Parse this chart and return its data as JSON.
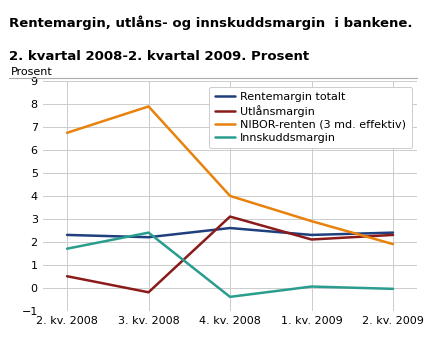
{
  "title_line1": "Rentemargin, utlåns- og innskuddsmargin  i bankene.",
  "title_line2": "2. kvartal 2008-2. kvartal 2009. Prosent",
  "ylabel": "Prosent",
  "x_labels": [
    "2. kv. 2008",
    "3. kv. 2008",
    "4. kv. 2008",
    "1. kv. 2009",
    "2. kv. 2009"
  ],
  "series": [
    {
      "name": "Rentemargin totalt",
      "color": "#1f3f7f",
      "values": [
        2.3,
        2.2,
        2.6,
        2.3,
        2.4
      ]
    },
    {
      "name": "Utlånsmargin",
      "color": "#8b1a1a",
      "values": [
        0.5,
        -0.2,
        3.1,
        2.1,
        2.3
      ]
    },
    {
      "name": "NIBOR-renten (3 md. effektiv)",
      "color": "#e8820c",
      "values": [
        6.75,
        7.9,
        4.0,
        2.9,
        1.9
      ]
    },
    {
      "name": "Innskuddsmargin",
      "color": "#2a9d8f",
      "values": [
        1.7,
        2.4,
        -0.4,
        0.05,
        -0.05
      ]
    }
  ],
  "ylim": [
    -1,
    9
  ],
  "yticks": [
    -1,
    0,
    1,
    2,
    3,
    4,
    5,
    6,
    7,
    8,
    9
  ],
  "background_color": "#ffffff",
  "grid_color": "#cccccc",
  "linewidth": 1.8,
  "title_fontsize": 9.5,
  "tick_fontsize": 8,
  "legend_fontsize": 8
}
